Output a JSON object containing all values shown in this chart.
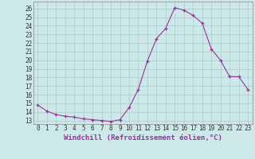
{
  "x": [
    0,
    1,
    2,
    3,
    4,
    5,
    6,
    7,
    8,
    9,
    10,
    11,
    12,
    13,
    14,
    15,
    16,
    17,
    18,
    19,
    20,
    21,
    22,
    23
  ],
  "y": [
    14.8,
    14.1,
    13.7,
    13.5,
    13.4,
    13.2,
    13.1,
    13.0,
    12.9,
    13.1,
    14.5,
    16.6,
    19.9,
    22.5,
    23.7,
    26.1,
    25.8,
    25.2,
    24.3,
    21.3,
    20.0,
    18.1,
    18.1,
    16.6
  ],
  "xlabel": "Windchill (Refroidissement éolien,°C)",
  "xticks": [
    0,
    1,
    2,
    3,
    4,
    5,
    6,
    7,
    8,
    9,
    10,
    11,
    12,
    13,
    14,
    15,
    16,
    17,
    18,
    19,
    20,
    21,
    22,
    23
  ],
  "yticks": [
    13,
    14,
    15,
    16,
    17,
    18,
    19,
    20,
    21,
    22,
    23,
    24,
    25,
    26
  ],
  "ylim": [
    12.6,
    26.8
  ],
  "xlim": [
    -0.5,
    23.5
  ],
  "line_color": "#993399",
  "marker": "+",
  "bg_color": "#cce8e8",
  "grid_color": "#aacccc",
  "xlabel_fontsize": 6.5,
  "tick_fontsize": 5.5
}
